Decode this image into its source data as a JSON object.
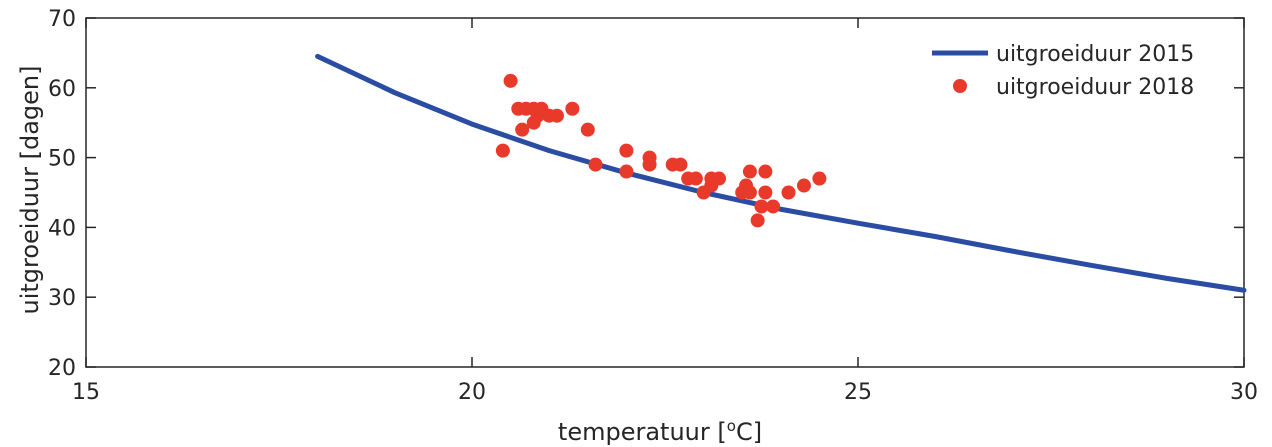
{
  "chart_data": {
    "type": "line",
    "xlabel_main": "temperatuur [",
    "xlabel_sup": "o",
    "xlabel_end": "C]",
    "ylabel": "uitgroeiduur [dagen]",
    "xlim": [
      15,
      30
    ],
    "ylim": [
      20,
      70
    ],
    "xticks": [
      15,
      20,
      25,
      30
    ],
    "yticks": [
      20,
      30,
      40,
      50,
      60,
      70
    ],
    "grid": false,
    "legend_position": "top-right",
    "colors": {
      "line": "#2a4da3",
      "points": "#e8392b",
      "axis": "#262626"
    },
    "series": [
      {
        "name": "uitgroeiduur 2015",
        "kind": "line",
        "x": [
          18,
          19,
          20,
          21,
          22,
          23,
          24,
          25,
          26,
          27,
          28,
          29,
          30
        ],
        "y": [
          64.5,
          59.3,
          54.8,
          51.0,
          47.8,
          45.0,
          42.6,
          40.6,
          38.7,
          36.6,
          34.6,
          32.7,
          31.0
        ]
      },
      {
        "name": "uitgroeiduur 2018",
        "kind": "scatter",
        "x": [
          20.5,
          20.4,
          20.6,
          20.7,
          20.8,
          20.85,
          20.9,
          20.65,
          20.8,
          21.0,
          21.1,
          21.3,
          21.5,
          21.6,
          22.0,
          22.0,
          22.3,
          22.3,
          22.6,
          22.7,
          22.8,
          22.9,
          23.0,
          23.1,
          23.1,
          23.2,
          23.5,
          23.55,
          23.6,
          23.6,
          23.7,
          23.75,
          23.8,
          23.8,
          23.9,
          24.1,
          24.3,
          24.5
        ],
        "y": [
          61,
          51,
          57,
          57,
          57,
          56,
          57,
          54,
          55,
          56,
          56,
          57,
          54,
          49,
          51,
          48,
          50,
          49,
          49,
          49,
          47,
          47,
          45,
          46,
          47,
          47,
          45,
          46,
          45,
          48,
          41,
          43,
          48,
          45,
          43,
          45,
          46,
          47
        ]
      }
    ]
  }
}
